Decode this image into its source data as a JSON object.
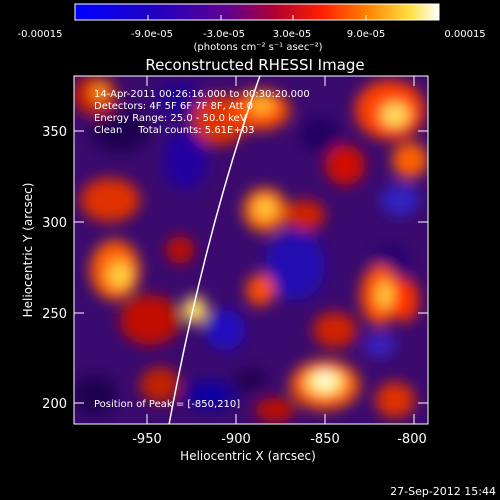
{
  "colorbar": {
    "tick_labels": [
      "-0.00015",
      "-9.0e-05",
      "-3.0e-05",
      "3.0e-05",
      "9.0e-05",
      "0.00015"
    ],
    "units": "(photons cm⁻² s⁻¹ asec⁻²)"
  },
  "plot": {
    "title": "Reconstructed RHESSI Image",
    "xlabel": "Heliocentric X (arcsec)",
    "ylabel": "Heliocentric Y (arcsec)",
    "x_tick_labels": [
      "-950",
      "-900",
      "-850",
      "-800"
    ],
    "y_tick_labels": [
      "200",
      "250",
      "300",
      "350"
    ],
    "annotations": [
      "14-Apr-2011 00:26:16.000 to 00:30:20.000",
      "Detectors: 4F 5F 6F 7F 8F, Att 0",
      "Energy Range: 25.0 - 50.0 keV",
      "Clean     Total counts: 5.61E+03"
    ],
    "peak_label": "Position of Peak = [-850,210]"
  },
  "footer": {
    "timestamp": "27-Sep-2012 15:44"
  }
}
